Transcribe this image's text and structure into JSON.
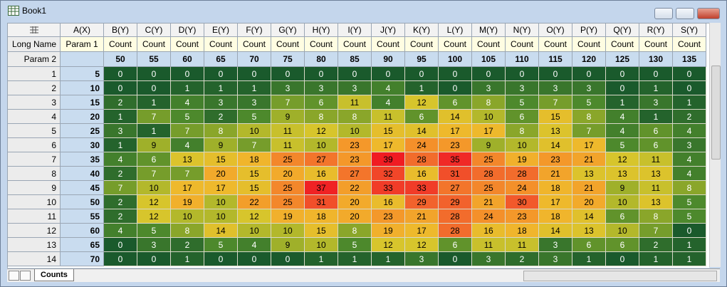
{
  "window": {
    "title": "Book1"
  },
  "sheet": {
    "columns": [
      "A(X)",
      "B(Y)",
      "C(Y)",
      "D(Y)",
      "E(Y)",
      "F(Y)",
      "G(Y)",
      "H(Y)",
      "I(Y)",
      "J(Y)",
      "K(Y)",
      "L(Y)",
      "M(Y)",
      "N(Y)",
      "O(Y)",
      "P(Y)",
      "Q(Y)",
      "R(Y)",
      "S(Y)"
    ],
    "long_name_label": "Long Name",
    "long_names": [
      "Param 1",
      "Count",
      "Count",
      "Count",
      "Count",
      "Count",
      "Count",
      "Count",
      "Count",
      "Count",
      "Count",
      "Count",
      "Count",
      "Count",
      "Count",
      "Count",
      "Count",
      "Count",
      "Count"
    ],
    "param2_label": "Param 2",
    "param2": [
      null,
      50,
      55,
      60,
      65,
      70,
      75,
      80,
      85,
      90,
      95,
      100,
      105,
      110,
      115,
      120,
      125,
      130,
      135
    ],
    "rows": [
      {
        "label": 1,
        "x": 5,
        "counts": [
          0,
          0,
          0,
          0,
          0,
          0,
          0,
          0,
          0,
          0,
          0,
          0,
          0,
          0,
          0,
          0,
          0,
          0
        ]
      },
      {
        "label": 2,
        "x": 10,
        "counts": [
          0,
          0,
          1,
          1,
          1,
          3,
          3,
          3,
          4,
          1,
          0,
          3,
          3,
          3,
          3,
          0,
          1,
          0
        ]
      },
      {
        "label": 3,
        "x": 15,
        "counts": [
          2,
          1,
          4,
          3,
          3,
          7,
          6,
          11,
          4,
          12,
          6,
          8,
          5,
          7,
          5,
          1,
          3,
          1
        ]
      },
      {
        "label": 4,
        "x": 20,
        "counts": [
          1,
          7,
          5,
          2,
          5,
          9,
          8,
          8,
          11,
          6,
          14,
          10,
          6,
          15,
          8,
          4,
          1,
          2
        ]
      },
      {
        "label": 5,
        "x": 25,
        "counts": [
          3,
          1,
          7,
          8,
          10,
          11,
          12,
          10,
          15,
          14,
          17,
          17,
          8,
          13,
          7,
          4,
          6,
          4
        ]
      },
      {
        "label": 6,
        "x": 30,
        "counts": [
          1,
          9,
          4,
          9,
          7,
          11,
          10,
          23,
          17,
          24,
          23,
          9,
          10,
          14,
          17,
          5,
          6,
          3
        ]
      },
      {
        "label": 7,
        "x": 35,
        "counts": [
          4,
          6,
          13,
          15,
          18,
          25,
          27,
          23,
          39,
          28,
          35,
          25,
          19,
          23,
          21,
          12,
          11,
          4
        ]
      },
      {
        "label": 8,
        "x": 40,
        "counts": [
          2,
          7,
          7,
          20,
          15,
          20,
          16,
          27,
          32,
          16,
          31,
          28,
          28,
          21,
          13,
          13,
          13,
          4
        ]
      },
      {
        "label": 9,
        "x": 45,
        "counts": [
          7,
          10,
          17,
          17,
          15,
          25,
          37,
          22,
          33,
          33,
          27,
          25,
          24,
          18,
          21,
          9,
          11,
          8
        ]
      },
      {
        "label": 10,
        "x": 50,
        "counts": [
          2,
          12,
          19,
          10,
          22,
          25,
          31,
          20,
          16,
          29,
          29,
          21,
          30,
          17,
          20,
          10,
          13,
          5
        ]
      },
      {
        "label": 11,
        "x": 55,
        "counts": [
          2,
          12,
          10,
          10,
          12,
          19,
          18,
          20,
          23,
          21,
          28,
          24,
          23,
          18,
          14,
          6,
          8,
          5
        ]
      },
      {
        "label": 12,
        "x": 60,
        "counts": [
          4,
          5,
          8,
          14,
          10,
          10,
          15,
          8,
          19,
          17,
          28,
          16,
          18,
          14,
          13,
          10,
          7,
          0
        ]
      },
      {
        "label": 13,
        "x": 65,
        "counts": [
          0,
          3,
          2,
          5,
          4,
          9,
          10,
          5,
          12,
          12,
          6,
          11,
          11,
          3,
          6,
          6,
          2,
          1
        ]
      },
      {
        "label": 14,
        "x": 70,
        "counts": [
          0,
          0,
          1,
          0,
          0,
          0,
          1,
          1,
          1,
          3,
          0,
          3,
          2,
          3,
          1,
          0,
          1,
          1
        ]
      }
    ],
    "tab": "Counts"
  }
}
